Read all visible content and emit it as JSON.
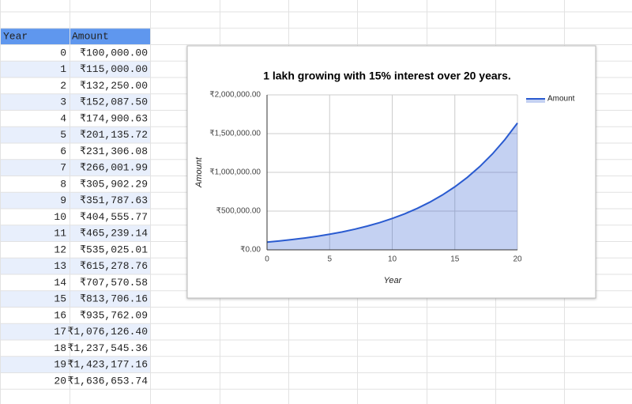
{
  "table": {
    "header": [
      "Year",
      "Amount"
    ],
    "rows": [
      [
        0,
        "₹100,000.00"
      ],
      [
        1,
        "₹115,000.00"
      ],
      [
        2,
        "₹132,250.00"
      ],
      [
        3,
        "₹152,087.50"
      ],
      [
        4,
        "₹174,900.63"
      ],
      [
        5,
        "₹201,135.72"
      ],
      [
        6,
        "₹231,306.08"
      ],
      [
        7,
        "₹266,001.99"
      ],
      [
        8,
        "₹305,902.29"
      ],
      [
        9,
        "₹351,787.63"
      ],
      [
        10,
        "₹404,555.77"
      ],
      [
        11,
        "₹465,239.14"
      ],
      [
        12,
        "₹535,025.01"
      ],
      [
        13,
        "₹615,278.76"
      ],
      [
        14,
        "₹707,570.58"
      ],
      [
        15,
        "₹813,706.16"
      ],
      [
        16,
        "₹935,762.09"
      ],
      [
        17,
        "₹1,076,126.40"
      ],
      [
        18,
        "₹1,237,545.36"
      ],
      [
        19,
        "₹1,423,177.16"
      ],
      [
        20,
        "₹1,636,653.74"
      ]
    ]
  },
  "chart_data": {
    "type": "area",
    "title": "1 lakh growing with 15% interest over 20 years.",
    "x_label": "Year",
    "y_label": "Amount",
    "x": [
      0,
      1,
      2,
      3,
      4,
      5,
      6,
      7,
      8,
      9,
      10,
      11,
      12,
      13,
      14,
      15,
      16,
      17,
      18,
      19,
      20
    ],
    "series": [
      {
        "name": "Amount",
        "color": "#2a5bd0",
        "values": [
          100000,
          115000,
          132250,
          152087.5,
          174900.63,
          201135.72,
          231306.08,
          266001.99,
          305902.29,
          351787.63,
          404555.77,
          465239.14,
          535025.01,
          615278.76,
          707570.58,
          813706.16,
          935762.09,
          1076126.4,
          1237545.36,
          1423177.16,
          1636653.74
        ]
      }
    ],
    "xlim": [
      0,
      20
    ],
    "xticks": [
      0,
      5,
      10,
      15,
      20
    ],
    "ylim": [
      0,
      2000000
    ],
    "yticks": [
      {
        "value": 0,
        "label": "₹0.00"
      },
      {
        "value": 500000,
        "label": "₹500,000.00"
      },
      {
        "value": 1000000,
        "label": "₹1,000,000.00"
      },
      {
        "value": 1500000,
        "label": "₹1,500,000.00"
      },
      {
        "value": 2000000,
        "label": "₹2,000,000.00"
      }
    ],
    "grid": true,
    "legend": "right"
  }
}
